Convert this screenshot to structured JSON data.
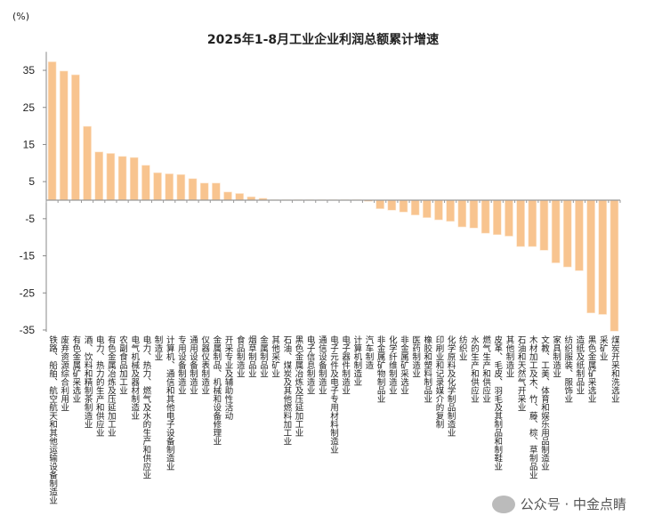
{
  "chart_data": {
    "type": "bar",
    "title": "2025年1-8月工业企业利润总额累计增速",
    "ylabel": "(%)",
    "xlabel": "",
    "ylim": [
      -35,
      40
    ],
    "yticks": [
      35,
      25,
      15,
      5,
      -5,
      -15,
      -25,
      -35
    ],
    "grid": false,
    "bar_color": "#F8C48F",
    "categories": [
      "铁路、船舶、航空航天和其他运输设备制造业",
      "废弃资源综合利用业",
      "有色金属矿采选业",
      "酒、饮料和精制茶制造业",
      "电力、热力的生产和供应业",
      "有色金属冶炼及压延加工业",
      "农副食品加工业",
      "电气机械及器材制造业",
      "电力、热力、燃气及水的生产和供应业",
      "制造业",
      "计算机、通信和其他电子设备制造业",
      "专用设备制造业",
      "通用设备制造业",
      "仪器仪表制造业",
      "金属制品、机械和设备修理业",
      "开采专业及辅助性活动",
      "食品制造业",
      "烟草制品业",
      "金属制品业",
      "其他采矿业",
      "石油、煤炭及其他燃料加工业",
      "黑色金属冶炼及压延加工业",
      "电子信息制造业",
      "通信设备制造业",
      "电子元件及电子专用材料制造业",
      "电子器件制造业",
      "计算机制造业",
      "汽车制造",
      "非金属矿物制品业",
      "化学纤维制造业",
      "非金属矿采选业",
      "医药制造业",
      "橡胶和塑料制品业",
      "印刷业和记录媒介的复制",
      "化学原料及化学制品制造业",
      "纺织业",
      "水的生产和供应业",
      "燃气生产和供应业",
      "皮革、毛皮、羽毛及其制品和制鞋业",
      "其他制造业",
      "石油和天然气开采业",
      "木材加工及木、竹、藤、棕、草制品业",
      "文教、工美、体育和娱乐用品制造业",
      "家具制造业",
      "纺织服装、服饰业",
      "造纸及纸制品业",
      "黑色金属矿采选业",
      "采矿业",
      "煤炭开采和洗选业"
    ],
    "values": [
      37.3,
      34.8,
      33.8,
      19.9,
      13.0,
      12.6,
      11.8,
      11.5,
      9.4,
      7.4,
      7.1,
      6.9,
      5.8,
      4.6,
      4.6,
      2.2,
      1.8,
      0.9,
      0.5,
      0.1,
      0.1,
      0.1,
      0.1,
      0.1,
      0.1,
      0.1,
      0.1,
      -0.3,
      -2.3,
      -2.7,
      -3.2,
      -4.0,
      -4.7,
      -5.3,
      -5.7,
      -7.2,
      -7.5,
      -8.9,
      -9.3,
      -9.7,
      -12.5,
      -12.5,
      -13.5,
      -16.9,
      -18.0,
      -19.0,
      -30.4,
      -30.8,
      -35.3
    ]
  },
  "watermark": "公众号 · 中金点睛"
}
